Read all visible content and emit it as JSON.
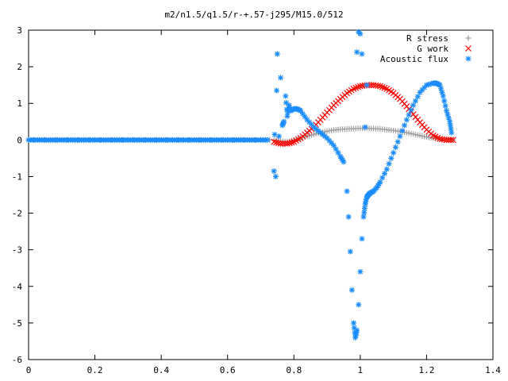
{
  "chart_data": {
    "type": "scatter",
    "title": "m2/n1.5/q1.5/r-+.57-j295/M15.0/512",
    "xlabel": "",
    "ylabel": "",
    "xlim": [
      0,
      1.4
    ],
    "ylim": [
      -6,
      3
    ],
    "xticks": [
      "0",
      "0.2",
      "0.4",
      "0.6",
      "0.8",
      "1",
      "1.2",
      "1.4"
    ],
    "yticks": [
      "3",
      "2",
      "1",
      "0",
      "-1",
      "-2",
      "-3",
      "-4",
      "-5",
      "-6"
    ],
    "grid": false,
    "legend": "top-right",
    "series": [
      {
        "name": "R stress",
        "marker": "plus",
        "color": "#a0a0a0",
        "x": [
          0.0,
          0.05,
          0.1,
          0.15,
          0.2,
          0.25,
          0.3,
          0.35,
          0.4,
          0.45,
          0.5,
          0.55,
          0.6,
          0.65,
          0.7,
          0.74,
          0.76,
          0.78,
          0.8,
          0.82,
          0.84,
          0.86,
          0.88,
          0.9,
          0.92,
          0.94,
          0.96,
          0.98,
          1.0,
          1.02,
          1.04,
          1.06,
          1.08,
          1.1,
          1.12,
          1.14,
          1.16,
          1.18,
          1.2,
          1.22,
          1.24,
          1.26,
          1.28
        ],
        "y": [
          0,
          0,
          0,
          0,
          0,
          0,
          0,
          0,
          0,
          0,
          0,
          0,
          0,
          0,
          0,
          0.0,
          -0.03,
          -0.05,
          0.0,
          0.05,
          0.1,
          0.15,
          0.2,
          0.24,
          0.27,
          0.29,
          0.3,
          0.31,
          0.32,
          0.32,
          0.31,
          0.3,
          0.28,
          0.26,
          0.23,
          0.2,
          0.16,
          0.12,
          0.08,
          0.05,
          0.02,
          0.01,
          0.0
        ]
      },
      {
        "name": "G work",
        "marker": "cross",
        "color": "#ff0000",
        "x": [
          0.74,
          0.76,
          0.78,
          0.8,
          0.82,
          0.84,
          0.86,
          0.88,
          0.9,
          0.92,
          0.94,
          0.96,
          0.98,
          1.0,
          1.02,
          1.04,
          1.06,
          1.08,
          1.1,
          1.12,
          1.14,
          1.16,
          1.18,
          1.2,
          1.22,
          1.24,
          1.26,
          1.28
        ],
        "y": [
          -0.05,
          -0.1,
          -0.1,
          -0.05,
          0.05,
          0.2,
          0.35,
          0.55,
          0.75,
          0.95,
          1.12,
          1.28,
          1.4,
          1.47,
          1.5,
          1.5,
          1.47,
          1.4,
          1.28,
          1.12,
          0.92,
          0.7,
          0.48,
          0.28,
          0.12,
          0.03,
          0.0,
          0.0
        ]
      },
      {
        "name": "Acoustic flux",
        "marker": "star",
        "color": "#1a8cff",
        "x": [
          0.0,
          0.02,
          0.04,
          0.06,
          0.08,
          0.1,
          0.12,
          0.14,
          0.16,
          0.18,
          0.2,
          0.22,
          0.24,
          0.26,
          0.28,
          0.3,
          0.32,
          0.34,
          0.36,
          0.38,
          0.4,
          0.42,
          0.44,
          0.46,
          0.48,
          0.5,
          0.52,
          0.54,
          0.56,
          0.58,
          0.6,
          0.62,
          0.64,
          0.66,
          0.68,
          0.7,
          0.72,
          0.74,
          0.742,
          0.745,
          0.748,
          0.75,
          0.755,
          0.76,
          0.765,
          0.77,
          0.775,
          0.78,
          0.785,
          0.79,
          0.8,
          0.81,
          0.82,
          0.84,
          0.86,
          0.88,
          0.9,
          0.92,
          0.94,
          0.95,
          0.96,
          0.965,
          0.97,
          0.975,
          0.98,
          0.985,
          0.99,
          0.995,
          1.0,
          1.005,
          1.01,
          1.015,
          1.02,
          1.025,
          1.03,
          1.04,
          1.05,
          1.06,
          1.08,
          1.1,
          1.12,
          1.14,
          1.16,
          1.18,
          1.2,
          1.22,
          1.23,
          1.24,
          1.25,
          1.26,
          1.27,
          1.275
        ],
        "y": [
          0,
          0,
          0,
          0,
          0,
          0,
          0,
          0,
          0,
          0,
          0,
          0,
          0,
          0,
          0,
          0,
          0,
          0,
          0,
          0,
          0,
          0,
          0,
          0,
          0,
          0,
          0,
          0,
          0,
          0,
          0,
          0,
          0,
          0,
          0,
          0,
          0,
          -0.85,
          0.15,
          -1.0,
          1.35,
          2.35,
          0.1,
          1.7,
          0.4,
          0.5,
          1.2,
          0.65,
          0.95,
          0.8,
          0.85,
          0.85,
          0.8,
          0.55,
          0.35,
          0.2,
          0.05,
          -0.15,
          -0.45,
          -0.6,
          -1.4,
          -2.1,
          -3.05,
          -4.1,
          -5.0,
          -5.4,
          -5.2,
          -4.5,
          -3.6,
          -2.7,
          -2.1,
          -1.75,
          -1.55,
          -1.5,
          -1.45,
          -1.4,
          -1.3,
          -1.15,
          -0.8,
          -0.35,
          0.1,
          0.55,
          0.95,
          1.3,
          1.5,
          1.55,
          1.55,
          1.5,
          1.2,
          0.8,
          0.5,
          0.2
        ]
      }
    ],
    "extra_points": [
      {
        "series": "Acoustic flux",
        "x": [
          0.995,
          1.0,
          0.99,
          1.005,
          1.02,
          1.015
        ],
        "y": [
          2.95,
          2.9,
          2.4,
          2.35,
          1.5,
          0.35
        ]
      }
    ]
  }
}
